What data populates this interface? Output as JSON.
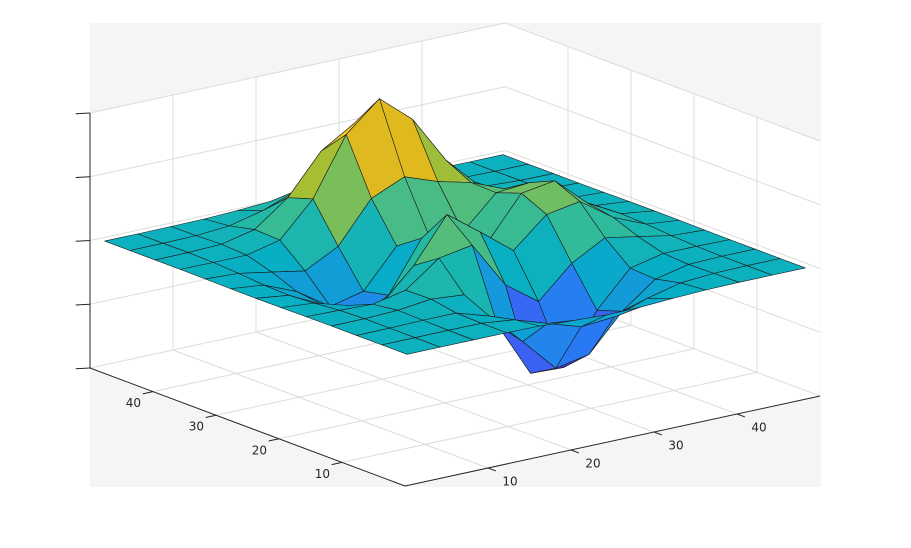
{
  "chart_data": {
    "type": "surface",
    "x": [
      1,
      5,
      9,
      13,
      17,
      21,
      25,
      29,
      33,
      37,
      41,
      45,
      49
    ],
    "y": [
      1,
      5,
      9,
      13,
      17,
      21,
      25,
      29,
      33,
      37,
      41,
      45,
      49
    ],
    "z": [
      [
        0,
        0,
        0,
        0,
        -0.03,
        -0.14,
        -0.24,
        -0.22,
        -0.11,
        -0.03,
        0,
        0,
        0
      ],
      [
        0,
        0,
        0.01,
        0,
        -0.23,
        -0.91,
        -1.57,
        -1.41,
        -0.69,
        -0.18,
        -0.03,
        0,
        0
      ],
      [
        0,
        0.01,
        0.05,
        0.05,
        -0.59,
        -2.64,
        -4.76,
        -4.35,
        -2.1,
        -0.53,
        -0.06,
        0,
        0
      ],
      [
        0,
        0.01,
        0.08,
        0.33,
        0.15,
        -2.19,
        -5.68,
        -5.76,
        -2.63,
        -0.44,
        0.04,
        0.03,
        0
      ],
      [
        -0.01,
        -0.06,
        -0.13,
        0.3,
        1.86,
        2.22,
        -0.72,
        -2.22,
        -0.27,
        0.88,
        0.5,
        0.11,
        0.01
      ],
      [
        -0.03,
        -0.2,
        -0.8,
        -1.21,
        0.8,
        3.55,
        2,
        0.39,
        2.2,
        2.56,
        1.12,
        0.24,
        0.03
      ],
      [
        -0.04,
        -0.3,
        -1.33,
        -2.77,
        -1.65,
        1.48,
        0.98,
        0.37,
        2.94,
        3.27,
        1.41,
        0.3,
        0.03
      ],
      [
        -0.03,
        -0.25,
        -1.12,
        -2.49,
        -2,
        0.39,
        0.46,
        0.38,
        2.38,
        2.56,
        1.09,
        0.23,
        0.03
      ],
      [
        -0.01,
        -0.11,
        -0.48,
        -0.86,
        0.23,
        2.79,
        3.69,
        2.94,
        2.43,
        1.58,
        0.58,
        0.11,
        0.01
      ],
      [
        0,
        -0.02,
        -0.01,
        0.48,
        2.61,
        6.2,
        8,
        6.25,
        3.25,
        1.19,
        0.29,
        0.05,
        0
      ],
      [
        0,
        0.01,
        0.08,
        0.55,
        2.1,
        4.56,
        5.86,
        4.57,
        2.21,
        0.68,
        0.13,
        0.02,
        0
      ],
      [
        0,
        0,
        0.03,
        0.19,
        0.69,
        1.47,
        1.88,
        1.47,
        0.7,
        0.2,
        0.04,
        0,
        0
      ],
      [
        0,
        0,
        0.01,
        0.03,
        0.11,
        0.23,
        0.3,
        0.23,
        0.11,
        0.03,
        0.01,
        0,
        0
      ]
    ],
    "xlim": [
      0,
      50
    ],
    "ylim": [
      0,
      50
    ],
    "zlim": [
      -8,
      8
    ],
    "xticks": [
      10,
      20,
      30,
      40
    ],
    "yticks": [
      10,
      20,
      30,
      40
    ],
    "zticks": [
      -8,
      -4,
      0,
      4,
      8
    ],
    "grid": true,
    "colormap": "parula",
    "edge_color": "#1a1a1a"
  }
}
